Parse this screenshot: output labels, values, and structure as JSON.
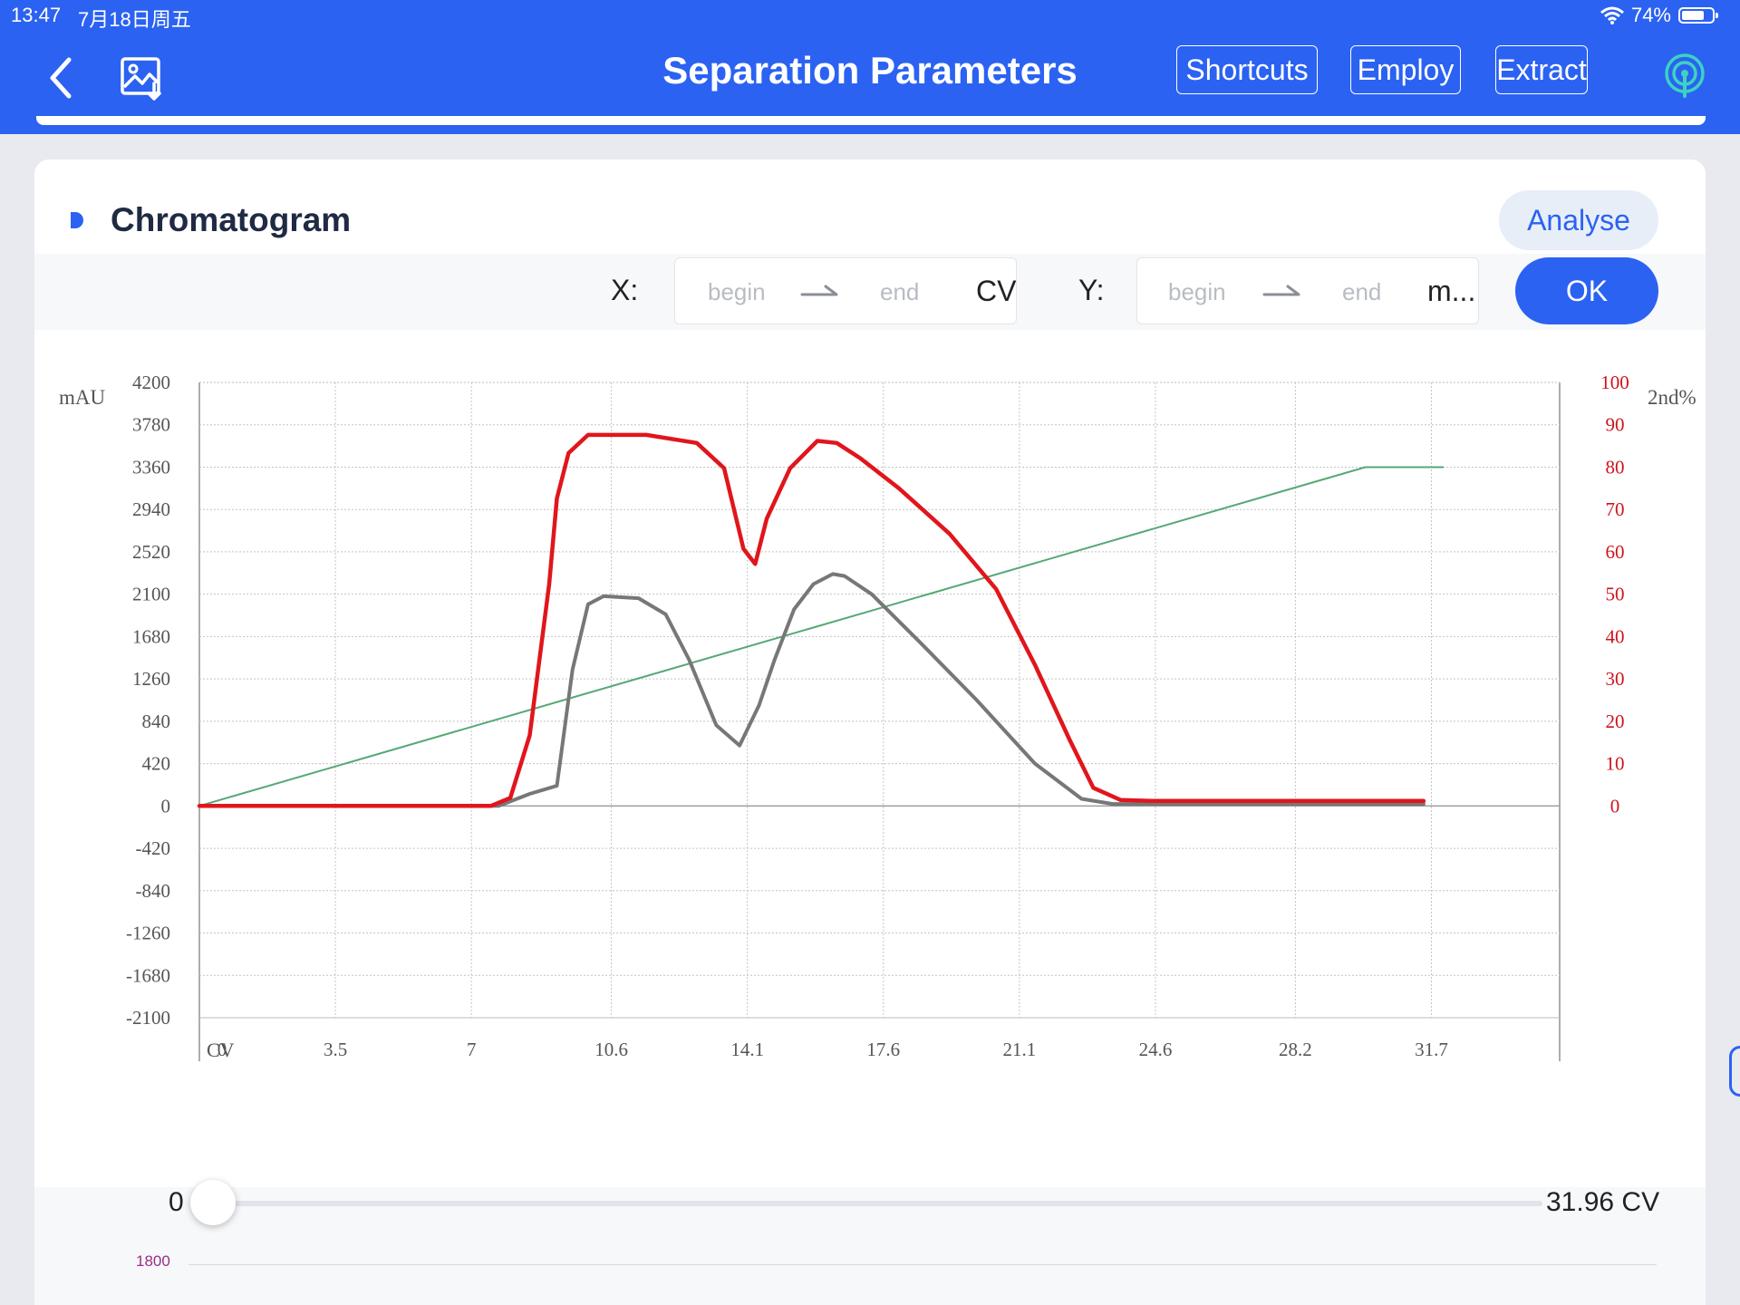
{
  "status_bar": {
    "time": "13:47",
    "date": "7月18日周五",
    "battery": "74%",
    "battery_level": 0.74
  },
  "header": {
    "title": "Separation Parameters",
    "buttons": [
      "Shortcuts",
      "Employ",
      "Extract"
    ]
  },
  "chart_panel": {
    "title": "Chromatogram",
    "analyse_label": "Analyse",
    "x_filter": {
      "label": "X:",
      "begin_placeholder": "begin",
      "end_placeholder": "end",
      "unit": "CV"
    },
    "y_filter": {
      "label": "Y:",
      "begin_placeholder": "begin",
      "end_placeholder": "end",
      "unit": "m..."
    },
    "ok_label": "OK"
  },
  "chart_data": {
    "type": "line",
    "ylabel": "mAU",
    "y2label": "2nd%",
    "xunit": "CV",
    "xticks": [
      "0",
      "3.5",
      "7",
      "10.6",
      "14.1",
      "17.6",
      "21.1",
      "24.6",
      "28.2",
      "31.7"
    ],
    "yticks": [
      "4200",
      "3780",
      "3360",
      "2940",
      "2520",
      "2100",
      "1680",
      "1260",
      "840",
      "420",
      "0",
      "-420",
      "-840",
      "-1260",
      "-1680",
      "-2100"
    ],
    "y2ticks": [
      "100",
      "90",
      "80",
      "70",
      "60",
      "50",
      "40",
      "30",
      "20",
      "10",
      "0"
    ],
    "xlim": [
      0,
      35
    ],
    "ylim": [
      -2100,
      4200
    ],
    "y2lim": [
      0,
      100
    ],
    "grid": true,
    "series": [
      {
        "color": "#e0161c",
        "axis": "left",
        "x": [
          0,
          7.5,
          8.0,
          8.5,
          9.0,
          9.2,
          9.5,
          10.0,
          11.5,
          12.8,
          13.5,
          14.0,
          14.3,
          14.6,
          15.2,
          15.9,
          16.4,
          17.0,
          18.0,
          19.3,
          20.5,
          21.5,
          22.4,
          23.0,
          23.7,
          24.5,
          31.5
        ],
        "y": [
          0,
          0,
          80,
          700,
          2200,
          3050,
          3500,
          3680,
          3680,
          3600,
          3350,
          2550,
          2400,
          2850,
          3350,
          3620,
          3600,
          3450,
          3150,
          2700,
          2150,
          1400,
          650,
          180,
          60,
          50,
          50
        ]
      },
      {
        "color": "#777777",
        "axis": "left",
        "x": [
          0,
          7.7,
          8.5,
          9.2,
          9.6,
          10.0,
          10.4,
          11.3,
          12.0,
          12.6,
          13.3,
          13.9,
          14.4,
          14.8,
          15.3,
          15.8,
          16.3,
          16.6,
          17.3,
          18.6,
          20.0,
          21.5,
          22.7,
          23.5,
          31.5
        ],
        "y": [
          0,
          0,
          120,
          200,
          1350,
          2000,
          2080,
          2060,
          1900,
          1450,
          800,
          600,
          1000,
          1450,
          1950,
          2200,
          2300,
          2280,
          2100,
          1600,
          1050,
          420,
          70,
          20,
          20
        ]
      },
      {
        "color": "#55a874",
        "axis": "right",
        "x": [
          0,
          30.0,
          32.0
        ],
        "y": [
          0,
          80,
          80
        ]
      }
    ]
  },
  "slider": {
    "start": "0",
    "end": "31.96 CV",
    "position": 0
  },
  "mini_chart": {
    "label": "1800"
  }
}
